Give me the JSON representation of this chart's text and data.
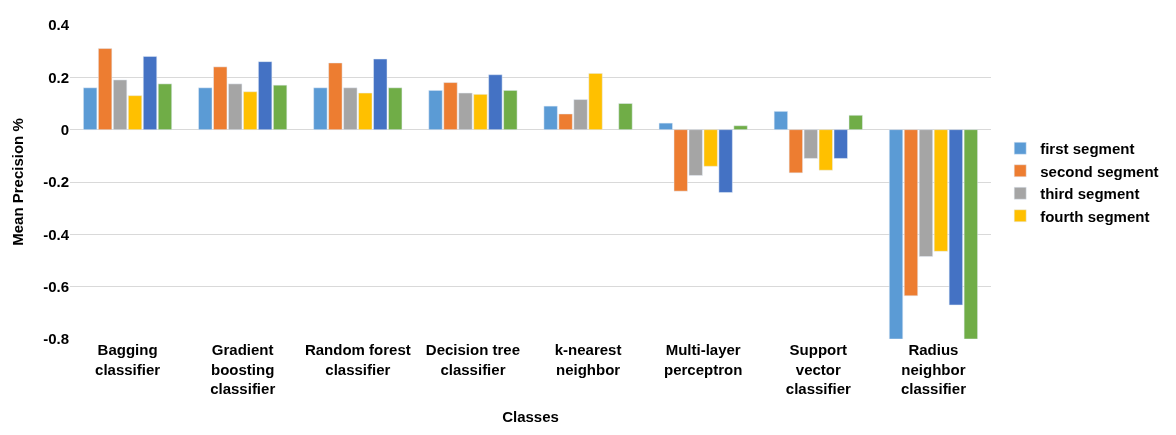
{
  "chart_data": {
    "type": "bar",
    "xlabel": "Classes",
    "ylabel": "Mean Precision %",
    "categories": [
      "Bagging classifier",
      "Gradient boosting classifier",
      "Random forest classifier",
      "Decision tree classifier",
      "k-nearest neighbor",
      "Multi-layer perceptron",
      "Support vector classifier",
      "Radius neighbor classifier"
    ],
    "series": [
      {
        "name": "first segment",
        "color": "#5b9bd5",
        "values": [
          0.16,
          0.16,
          0.16,
          0.15,
          0.09,
          0.025,
          0.07,
          -0.8
        ]
      },
      {
        "name": "second segment",
        "color": "#ed7d31",
        "values": [
          0.31,
          0.24,
          0.255,
          0.18,
          0.06,
          -0.235,
          -0.165,
          -0.635
        ]
      },
      {
        "name": "third segment",
        "color": "#a5a5a5",
        "values": [
          0.19,
          0.175,
          0.16,
          0.14,
          0.115,
          -0.175,
          -0.11,
          -0.485
        ]
      },
      {
        "name": "fourth segment",
        "color": "#ffc000",
        "values": [
          0.13,
          0.145,
          0.14,
          0.135,
          0.215,
          -0.14,
          -0.155,
          -0.465
        ]
      },
      {
        "color": "#4472c4",
        "values": [
          0.28,
          0.26,
          0.27,
          0.21,
          null,
          -0.24,
          -0.11,
          -0.67
        ]
      },
      {
        "color": "#70ad47",
        "values": [
          0.175,
          0.17,
          0.16,
          0.15,
          0.1,
          0.015,
          0.055,
          -0.8
        ]
      }
    ],
    "ylim": [
      -0.8,
      0.4
    ],
    "yticks": [
      -0.8,
      -0.6,
      -0.4,
      -0.2,
      0,
      0.2,
      0.4
    ],
    "grid": "y",
    "legend": "right"
  }
}
